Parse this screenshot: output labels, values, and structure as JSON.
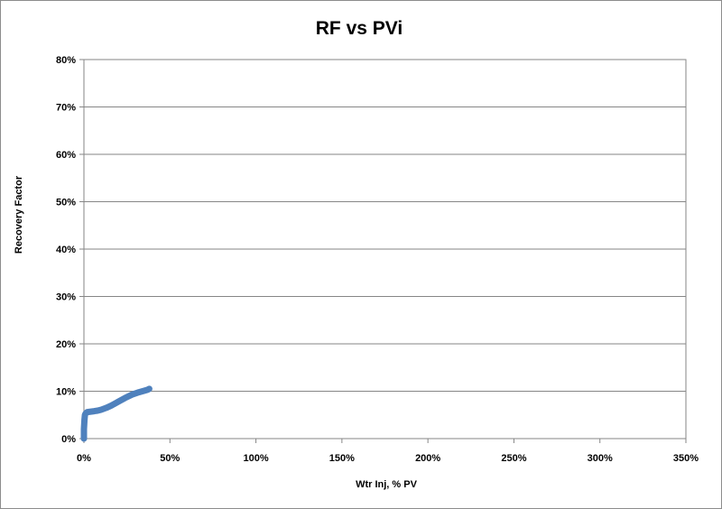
{
  "chart_data": {
    "type": "line",
    "title": "RF vs PVi",
    "xlabel": "Wtr Inj, % PV",
    "ylabel": "Recovery Factor",
    "xlim": [
      0,
      350
    ],
    "ylim": [
      0,
      80
    ],
    "x_ticks": [
      "0%",
      "50%",
      "100%",
      "150%",
      "200%",
      "250%",
      "300%",
      "350%"
    ],
    "y_ticks": [
      "0%",
      "10%",
      "20%",
      "30%",
      "40%",
      "50%",
      "60%",
      "70%",
      "80%"
    ],
    "grid": "horizontal",
    "legend": "none",
    "series": [
      {
        "color": "#4f81bd",
        "x": [
          0,
          0,
          0.3,
          0.6,
          1,
          2,
          4,
          6,
          8,
          10,
          13,
          16,
          20,
          24,
          28,
          32,
          35,
          37,
          38
        ],
        "y": [
          0,
          2,
          4,
          5,
          5.3,
          5.6,
          5.7,
          5.8,
          5.9,
          6.1,
          6.5,
          7.0,
          7.8,
          8.6,
          9.3,
          9.8,
          10.1,
          10.3,
          10.5
        ]
      }
    ]
  }
}
